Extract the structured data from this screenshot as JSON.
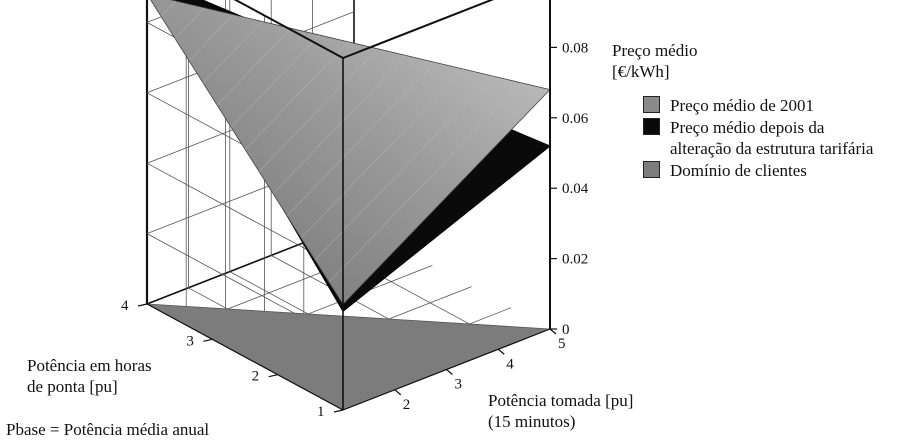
{
  "chart_data": {
    "type": "surface3d",
    "zlabel": [
      "Preço médio",
      "[€/kWh]"
    ],
    "xlabel": [
      "Potência tomada [pu]",
      "(15 minutos)"
    ],
    "ylabel": [
      "Potência em horas",
      "de ponta [pu]"
    ],
    "footnote": "Pbase = Potência média anual",
    "x_ticks": [
      "2",
      "3",
      "4",
      "5"
    ],
    "y_ticks": [
      "1",
      "2",
      "3",
      "4"
    ],
    "z_ticks": [
      "0",
      "0.02",
      "0.04",
      "0.06",
      "0.08"
    ],
    "xlim": [
      1,
      5
    ],
    "ylim": [
      1,
      4
    ],
    "zlim": [
      0,
      0.1
    ],
    "grid": true,
    "legend_position": "top-right",
    "series": [
      {
        "name": "Preço médio de 2001",
        "color": "#8a8a8a",
        "vertices": [
          [
            1,
            1,
            0.03
          ],
          [
            5,
            1,
            0.068
          ],
          [
            1,
            4,
            0.088
          ]
        ]
      },
      {
        "name": "Preço médio depois da alteração da estrutura tarifária",
        "color": "#0a0a0a",
        "vertices": [
          [
            1,
            1,
            0.028
          ],
          [
            5,
            1,
            0.052
          ],
          [
            1,
            4,
            0.093
          ]
        ]
      },
      {
        "name": "Domínio de clientes",
        "color": "#7c7c7c",
        "vertices": [
          [
            1,
            1,
            0
          ],
          [
            5,
            1,
            0
          ],
          [
            1,
            4,
            0
          ]
        ]
      }
    ],
    "legend_lines": [
      [
        "Preço médio de 2001"
      ],
      [
        "Preço médio depois da",
        "alteração da estrutura tarifária"
      ],
      [
        "Domínio de clientes"
      ]
    ]
  }
}
